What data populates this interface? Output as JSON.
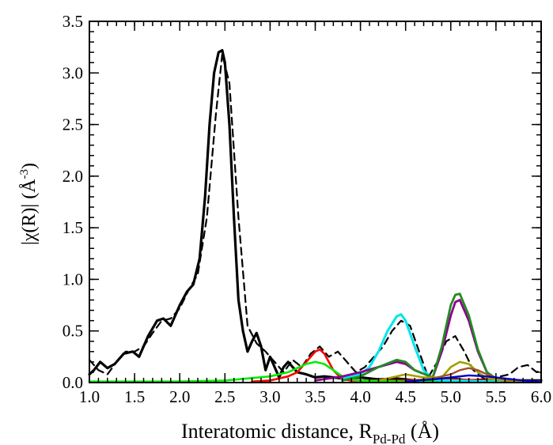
{
  "chart_data": {
    "type": "line",
    "xlabel": {
      "main": "Interatomic distance, R",
      "sub": "Pd-Pd",
      "unit": " (Å)"
    },
    "ylabel": {
      "main": "|χ(R)| (Å",
      "sup": "-3",
      "end": ")"
    },
    "xlim": [
      1.0,
      6.0
    ],
    "ylim": [
      0.0,
      3.5
    ],
    "xticks": [
      "1.0",
      "1.5",
      "2.0",
      "2.5",
      "3.0",
      "3.5",
      "4.0",
      "4.5",
      "5.0",
      "5.5",
      "6.0"
    ],
    "yticks": [
      "0.0",
      "0.5",
      "1.0",
      "1.5",
      "2.0",
      "2.5",
      "3.0",
      "3.5"
    ],
    "grid": false,
    "series": [
      {
        "color": "#000000",
        "dash": false,
        "width": 3.2,
        "x": [
          1.0,
          1.05,
          1.12,
          1.2,
          1.28,
          1.38,
          1.48,
          1.55,
          1.65,
          1.75,
          1.82,
          1.9,
          2.0,
          2.08,
          2.15,
          2.22,
          2.28,
          2.33,
          2.38,
          2.43,
          2.47,
          2.5,
          2.55,
          2.6,
          2.65,
          2.7,
          2.75,
          2.8,
          2.85,
          2.9,
          2.95,
          3.0,
          3.05,
          3.1,
          3.15,
          3.2,
          3.3,
          3.4,
          3.5,
          3.6,
          3.7,
          3.8,
          4.0,
          4.2,
          4.4,
          4.6,
          4.8,
          5.0,
          5.2,
          5.4,
          5.6,
          5.8,
          6.0
        ],
        "y": [
          0.08,
          0.12,
          0.2,
          0.14,
          0.18,
          0.28,
          0.3,
          0.25,
          0.45,
          0.6,
          0.62,
          0.55,
          0.75,
          0.88,
          0.95,
          1.2,
          1.8,
          2.5,
          3.0,
          3.2,
          3.22,
          3.1,
          2.5,
          1.6,
          0.8,
          0.5,
          0.3,
          0.4,
          0.48,
          0.35,
          0.12,
          0.25,
          0.15,
          0.05,
          0.15,
          0.2,
          0.1,
          0.08,
          0.05,
          0.06,
          0.05,
          0.04,
          0.05,
          0.03,
          0.04,
          0.02,
          0.03,
          0.04,
          0.02,
          0.03,
          0.02,
          0.02,
          0.02
        ]
      },
      {
        "color": "#000000",
        "dash": true,
        "width": 2.2,
        "x": [
          1.0,
          1.1,
          1.2,
          1.3,
          1.4,
          1.5,
          1.6,
          1.7,
          1.8,
          1.9,
          2.0,
          2.1,
          2.2,
          2.3,
          2.4,
          2.47,
          2.55,
          2.65,
          2.75,
          2.85,
          2.95,
          3.05,
          3.15,
          3.25,
          3.35,
          3.45,
          3.55,
          3.65,
          3.75,
          3.85,
          3.95,
          4.05,
          4.15,
          4.25,
          4.35,
          4.45,
          4.55,
          4.65,
          4.75,
          4.85,
          4.95,
          5.05,
          5.15,
          5.25,
          5.35,
          5.45,
          5.55,
          5.65,
          5.75,
          5.85,
          5.95,
          6.0
        ],
        "y": [
          0.22,
          0.12,
          0.08,
          0.2,
          0.3,
          0.3,
          0.35,
          0.48,
          0.6,
          0.62,
          0.72,
          0.9,
          1.05,
          1.6,
          2.6,
          3.18,
          2.9,
          1.6,
          0.55,
          0.38,
          0.3,
          0.2,
          0.1,
          0.22,
          0.15,
          0.28,
          0.35,
          0.25,
          0.3,
          0.2,
          0.1,
          0.15,
          0.25,
          0.35,
          0.5,
          0.6,
          0.55,
          0.3,
          0.05,
          0.2,
          0.4,
          0.45,
          0.3,
          0.12,
          0.05,
          0.04,
          0.06,
          0.08,
          0.15,
          0.17,
          0.1,
          0.12
        ]
      },
      {
        "color": "#ff0000",
        "dash": false,
        "width": 2.6,
        "x": [
          2.8,
          3.0,
          3.2,
          3.3,
          3.4,
          3.5,
          3.55,
          3.6,
          3.7,
          3.8,
          3.9,
          4.0,
          4.5,
          5.0,
          5.5,
          6.0
        ],
        "y": [
          0.01,
          0.02,
          0.06,
          0.1,
          0.2,
          0.3,
          0.32,
          0.28,
          0.12,
          0.03,
          0.02,
          0.02,
          0.02,
          0.03,
          0.02,
          0.01
        ]
      },
      {
        "color": "#00ee00",
        "dash": false,
        "width": 2.6,
        "x": [
          1.0,
          2.0,
          2.5,
          3.0,
          3.2,
          3.4,
          3.5,
          3.6,
          3.7,
          3.8,
          3.9,
          4.0,
          4.5,
          5.0,
          6.0
        ],
        "y": [
          0.01,
          0.01,
          0.02,
          0.06,
          0.1,
          0.18,
          0.2,
          0.18,
          0.12,
          0.06,
          0.03,
          0.02,
          0.01,
          0.01,
          0.01
        ]
      },
      {
        "color": "#00e5ee",
        "dash": false,
        "width": 3.0,
        "x": [
          3.8,
          4.0,
          4.1,
          4.2,
          4.3,
          4.4,
          4.45,
          4.5,
          4.6,
          4.7,
          4.8,
          4.9,
          5.0,
          5.5,
          6.0
        ],
        "y": [
          0.04,
          0.08,
          0.15,
          0.3,
          0.5,
          0.64,
          0.66,
          0.6,
          0.35,
          0.12,
          0.03,
          0.02,
          0.02,
          0.01,
          0.01
        ]
      },
      {
        "color": "#8b008b",
        "dash": false,
        "width": 2.8,
        "x": [
          3.5,
          3.8,
          4.0,
          4.2,
          4.4,
          4.5,
          4.6,
          4.8,
          4.9,
          5.0,
          5.05,
          5.1,
          5.2,
          5.3,
          5.4,
          5.5,
          5.6,
          6.0
        ],
        "y": [
          0.02,
          0.06,
          0.1,
          0.15,
          0.2,
          0.18,
          0.12,
          0.05,
          0.3,
          0.65,
          0.78,
          0.8,
          0.6,
          0.3,
          0.1,
          0.03,
          0.02,
          0.01
        ]
      },
      {
        "color": "#228b22",
        "dash": false,
        "width": 2.8,
        "x": [
          3.8,
          4.0,
          4.2,
          4.4,
          4.5,
          4.6,
          4.8,
          4.9,
          5.0,
          5.05,
          5.1,
          5.2,
          5.3,
          5.4,
          5.5,
          5.6,
          6.0
        ],
        "y": [
          0.02,
          0.06,
          0.15,
          0.22,
          0.2,
          0.12,
          0.05,
          0.35,
          0.75,
          0.85,
          0.86,
          0.65,
          0.32,
          0.1,
          0.04,
          0.02,
          0.01
        ]
      },
      {
        "color": "#a0a000",
        "dash": false,
        "width": 2.6,
        "x": [
          4.2,
          4.5,
          4.7,
          4.9,
          5.0,
          5.1,
          5.2,
          5.3,
          5.4,
          5.5,
          5.6,
          6.0
        ],
        "y": [
          0.02,
          0.08,
          0.05,
          0.05,
          0.15,
          0.2,
          0.18,
          0.1,
          0.04,
          0.03,
          0.02,
          0.01
        ]
      },
      {
        "color": "#a0522d",
        "dash": false,
        "width": 2.4,
        "x": [
          4.6,
          4.8,
          5.0,
          5.1,
          5.2,
          5.3,
          5.4,
          5.5,
          5.6,
          6.0
        ],
        "y": [
          0.02,
          0.04,
          0.08,
          0.12,
          0.14,
          0.12,
          0.08,
          0.05,
          0.03,
          0.01
        ]
      },
      {
        "color": "#0000cd",
        "dash": false,
        "width": 2.4,
        "x": [
          4.5,
          4.8,
          5.0,
          5.2,
          5.4,
          5.6,
          5.8,
          6.0
        ],
        "y": [
          0.01,
          0.03,
          0.05,
          0.07,
          0.06,
          0.04,
          0.02,
          0.01
        ]
      }
    ]
  }
}
